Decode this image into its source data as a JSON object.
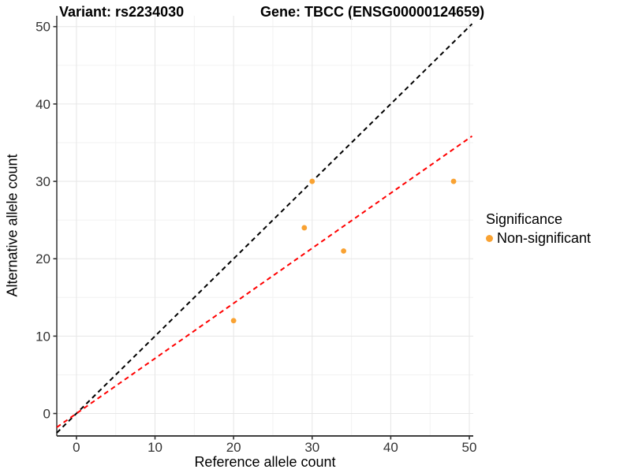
{
  "titles": {
    "variant": "Variant: rs2234030",
    "gene": "Gene: TBCC (ENSG00000124659)"
  },
  "chart_data": {
    "type": "scatter",
    "xlabel": "Reference allele count",
    "ylabel": "Alternative allele count",
    "xlim": [
      -2.5,
      50.5
    ],
    "ylim": [
      -2.9,
      51.4
    ],
    "x_ticks": [
      {
        "value": 0,
        "label": "0"
      },
      {
        "value": 10,
        "label": "10"
      },
      {
        "value": 20,
        "label": "20"
      },
      {
        "value": 30,
        "label": "30"
      },
      {
        "value": 40,
        "label": "40"
      },
      {
        "value": 50,
        "label": "50"
      }
    ],
    "y_ticks": [
      {
        "value": 0,
        "label": "0"
      },
      {
        "value": 10,
        "label": "10"
      },
      {
        "value": 20,
        "label": "20"
      },
      {
        "value": 30,
        "label": "30"
      },
      {
        "value": 40,
        "label": "40"
      },
      {
        "value": 50,
        "label": "50"
      }
    ],
    "x_minor": [
      5,
      15,
      25,
      35,
      45
    ],
    "y_minor": [
      5,
      15,
      25,
      35,
      45
    ],
    "points": [
      {
        "x": 20,
        "y": 12
      },
      {
        "x": 29,
        "y": 24
      },
      {
        "x": 30,
        "y": 30
      },
      {
        "x": 34,
        "y": 21
      },
      {
        "x": 48,
        "y": 30
      }
    ],
    "point_color": "#F9A232",
    "identity_line": {
      "slope": 1,
      "intercept": 0,
      "color": "#000000",
      "style": "dashed"
    },
    "regression_line": {
      "slope": 0.712,
      "intercept": 0,
      "color": "#FF0000",
      "style": "dashed"
    },
    "line_x_range": [
      -2.5,
      50.35
    ],
    "grid_major_color": "#E6E6E6",
    "grid_minor_color": "#F2F2F2",
    "axis_color": "#3F3F3F",
    "tick_text_color": "#333333",
    "legend": {
      "title": "Significance",
      "items": [
        {
          "label": "Non-significant",
          "color": "#F9A232"
        }
      ]
    }
  }
}
